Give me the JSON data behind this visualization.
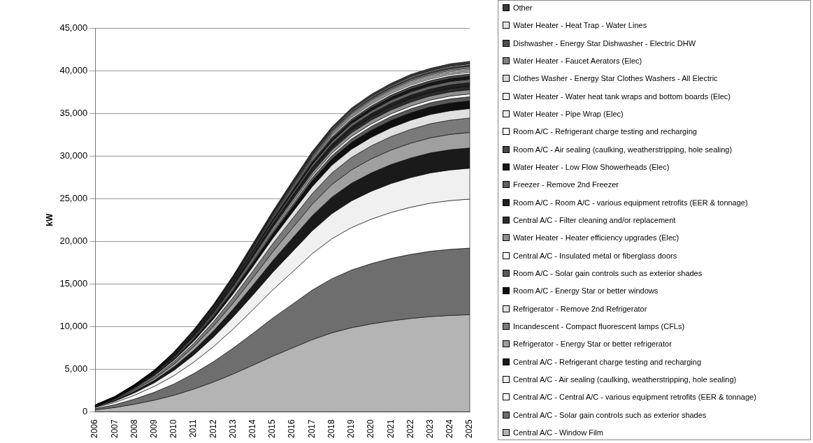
{
  "chart_data": {
    "type": "area",
    "stacked": true,
    "ylabel": "kW",
    "legend": "right",
    "grid": "y",
    "categories": [
      "2006",
      "2007",
      "2008",
      "2009",
      "2010",
      "2011",
      "2012",
      "2013",
      "2014",
      "2015",
      "2016",
      "2017",
      "2018",
      "2019",
      "2020",
      "2021",
      "2022",
      "2023",
      "2024",
      "2025"
    ],
    "ylim": [
      0,
      45000
    ],
    "yticks": [
      {
        "value": 0,
        "label": "0"
      },
      {
        "value": 5000,
        "label": "5,000"
      },
      {
        "value": 10000,
        "label": "10,000"
      },
      {
        "value": 15000,
        "label": "15,000"
      },
      {
        "value": 20000,
        "label": "20,000"
      },
      {
        "value": 25000,
        "label": "25,000"
      },
      {
        "value": 30000,
        "label": "30,000"
      },
      {
        "value": 35000,
        "label": "35,000"
      },
      {
        "value": 40000,
        "label": "40,000"
      },
      {
        "value": 45000,
        "label": "45,000"
      }
    ],
    "series": [
      {
        "name": "Central A/C - Window Film",
        "color": "#b4b4b4",
        "values": [
          220,
          500,
          890,
          1360,
          1940,
          2660,
          3490,
          4430,
          5460,
          6510,
          7480,
          8450,
          9250,
          9860,
          10300,
          10660,
          10940,
          11160,
          11300,
          11380
        ]
      },
      {
        "name": "Central A/C - Solar gain controls such as exterior shades",
        "color": "#6e6e6e",
        "values": [
          150,
          340,
          610,
          930,
          1330,
          1820,
          2390,
          3040,
          3740,
          4470,
          5130,
          5800,
          6350,
          6760,
          7070,
          7320,
          7510,
          7660,
          7750,
          7810
        ]
      },
      {
        "name": "Central A/C - Central A/C - various equipment retrofits (EER & tonnage)",
        "color": "#ffffff",
        "values": [
          110,
          250,
          450,
          690,
          980,
          1340,
          1760,
          2240,
          2760,
          3290,
          3780,
          4270,
          4680,
          4980,
          5210,
          5390,
          5530,
          5640,
          5710,
          5750
        ]
      },
      {
        "name": "Central A/C - Air sealing (caulking, weatherstripping, hole sealing)",
        "color": "#f0f0f0",
        "values": [
          70,
          160,
          280,
          430,
          620,
          840,
          1110,
          1410,
          1730,
          2070,
          2380,
          2680,
          2940,
          3130,
          3270,
          3390,
          3480,
          3550,
          3590,
          3620
        ]
      },
      {
        "name": "Central A/C - Refrigerant charge testing and recharging",
        "color": "#1a1a1a",
        "values": [
          50,
          100,
          190,
          280,
          410,
          560,
          730,
          930,
          1140,
          1360,
          1570,
          1770,
          1940,
          2060,
          2160,
          2230,
          2290,
          2340,
          2370,
          2380
        ]
      },
      {
        "name": "Refrigerator - Energy Star or better refrigerator",
        "color": "#a0a0a0",
        "values": [
          40,
          80,
          140,
          220,
          310,
          420,
          550,
          700,
          870,
          1030,
          1190,
          1340,
          1470,
          1570,
          1640,
          1690,
          1740,
          1770,
          1800,
          1810
        ]
      },
      {
        "name": "Incandescent - Compact fluorescent lamps (CFLs)",
        "color": "#7a7a7a",
        "values": [
          30,
          70,
          130,
          200,
          290,
          390,
          520,
          660,
          810,
          960,
          1110,
          1250,
          1370,
          1460,
          1530,
          1580,
          1620,
          1650,
          1670,
          1690
        ]
      },
      {
        "name": "Refrigerator - Remove 2nd Refrigerator",
        "color": "#e0e0e0",
        "values": [
          20,
          50,
          90,
          130,
          190,
          260,
          340,
          430,
          530,
          630,
          730,
          820,
          900,
          960,
          1000,
          1040,
          1070,
          1090,
          1100,
          1110
        ]
      },
      {
        "name": "Room A/C - Energy Star or better windows",
        "color": "#101010",
        "values": [
          20,
          40,
          70,
          110,
          150,
          210,
          280,
          350,
          430,
          520,
          590,
          670,
          730,
          780,
          820,
          850,
          870,
          890,
          900,
          900
        ]
      },
      {
        "name": "Room A/C - Solar gain controls such as exterior shades",
        "color": "#5a5a5a",
        "values": [
          10,
          20,
          40,
          60,
          80,
          120,
          150,
          190,
          240,
          280,
          320,
          370,
          400,
          430,
          450,
          460,
          470,
          480,
          490,
          490
        ]
      },
      {
        "name": "Central A/C - Insulated metal or fiberglass doors",
        "color": "#f8f8f8",
        "values": [
          10,
          10,
          30,
          40,
          60,
          80,
          100,
          130,
          160,
          190,
          220,
          240,
          270,
          290,
          300,
          310,
          320,
          320,
          330,
          330
        ]
      },
      {
        "name": "Water Heater - Heater efficiency upgrades (Elec)",
        "color": "#909090",
        "values": [
          10,
          20,
          40,
          60,
          80,
          120,
          150,
          190,
          240,
          280,
          320,
          370,
          400,
          430,
          450,
          460,
          470,
          480,
          490,
          490
        ]
      },
      {
        "name": "Central A/C - Filter cleaning and/or replacement",
        "color": "#2c2c2c",
        "values": [
          10,
          20,
          30,
          50,
          70,
          100,
          130,
          160,
          200,
          240,
          270,
          310,
          330,
          360,
          370,
          390,
          400,
          400,
          410,
          410
        ]
      },
      {
        "name": "Room A/C - Room A/C - various equipment retrofits (EER & tonnage)",
        "color": "#202020",
        "values": [
          10,
          20,
          30,
          50,
          70,
          100,
          130,
          160,
          200,
          240,
          270,
          310,
          330,
          360,
          370,
          390,
          400,
          400,
          410,
          410
        ]
      },
      {
        "name": "Freezer - Remove 2nd Freezer",
        "color": "#606060",
        "values": [
          10,
          20,
          30,
          50,
          70,
          100,
          130,
          160,
          200,
          240,
          270,
          310,
          330,
          360,
          370,
          390,
          400,
          400,
          410,
          410
        ]
      },
      {
        "name": "Water Heater - Low Flow Showerheads (Elec)",
        "color": "#181818",
        "values": [
          10,
          10,
          30,
          40,
          60,
          80,
          100,
          130,
          160,
          190,
          220,
          240,
          270,
          290,
          300,
          310,
          320,
          320,
          330,
          330
        ]
      },
      {
        "name": "Room A/C - Air sealing (caulking, weatherstripping, hole sealing)",
        "color": "#484848",
        "values": [
          10,
          10,
          20,
          30,
          50,
          70,
          90,
          110,
          140,
          160,
          190,
          210,
          230,
          250,
          260,
          270,
          280,
          280,
          290,
          290
        ]
      },
      {
        "name": "Room A/C - Refrigerant charge testing and recharging",
        "color": "#fcfcfc",
        "values": [
          0,
          10,
          20,
          20,
          40,
          50,
          60,
          80,
          100,
          120,
          140,
          150,
          170,
          180,
          190,
          190,
          200,
          200,
          200,
          210
        ]
      },
      {
        "name": "Water Heater - Pipe Wrap (Elec)",
        "color": "#ececec",
        "values": [
          0,
          10,
          10,
          20,
          30,
          40,
          50,
          60,
          80,
          90,
          110,
          120,
          130,
          140,
          150,
          150,
          160,
          160,
          160,
          160
        ]
      },
      {
        "name": "Water Heater - Water heat tank wraps and bottom boards (Elec)",
        "color": "#f4f4f4",
        "values": [
          0,
          10,
          10,
          20,
          30,
          40,
          50,
          60,
          80,
          90,
          110,
          120,
          130,
          140,
          150,
          150,
          160,
          160,
          160,
          160
        ]
      },
      {
        "name": "Clothes Washer - Energy Star Clothes Washers - All Electric",
        "color": "#d8d8d8",
        "values": [
          0,
          10,
          10,
          20,
          30,
          40,
          50,
          60,
          80,
          90,
          110,
          120,
          130,
          140,
          150,
          150,
          160,
          160,
          160,
          160
        ]
      },
      {
        "name": "Water Heater - Faucet Aerators (Elec)",
        "color": "#808080",
        "values": [
          0,
          10,
          20,
          20,
          40,
          50,
          60,
          80,
          100,
          120,
          140,
          150,
          170,
          180,
          190,
          190,
          200,
          200,
          200,
          210
        ]
      },
      {
        "name": "Dishwasher - Energy Star Dishwasher - Electric DHW",
        "color": "#505050",
        "values": [
          0,
          10,
          10,
          20,
          30,
          40,
          50,
          60,
          80,
          90,
          110,
          120,
          130,
          140,
          150,
          150,
          160,
          160,
          160,
          160
        ]
      },
      {
        "name": "Water Heater - Heat Trap - Water Lines",
        "color": "#e4e4e4",
        "values": [
          0,
          10,
          10,
          10,
          20,
          30,
          40,
          50,
          60,
          70,
          80,
          90,
          100,
          110,
          110,
          120,
          120,
          120,
          120,
          120
        ]
      },
      {
        "name": "Other",
        "color": "#383838",
        "values": [
          10,
          10,
          20,
          30,
          50,
          70,
          90,
          110,
          140,
          160,
          190,
          210,
          230,
          250,
          260,
          270,
          280,
          280,
          290,
          290
        ]
      }
    ]
  }
}
